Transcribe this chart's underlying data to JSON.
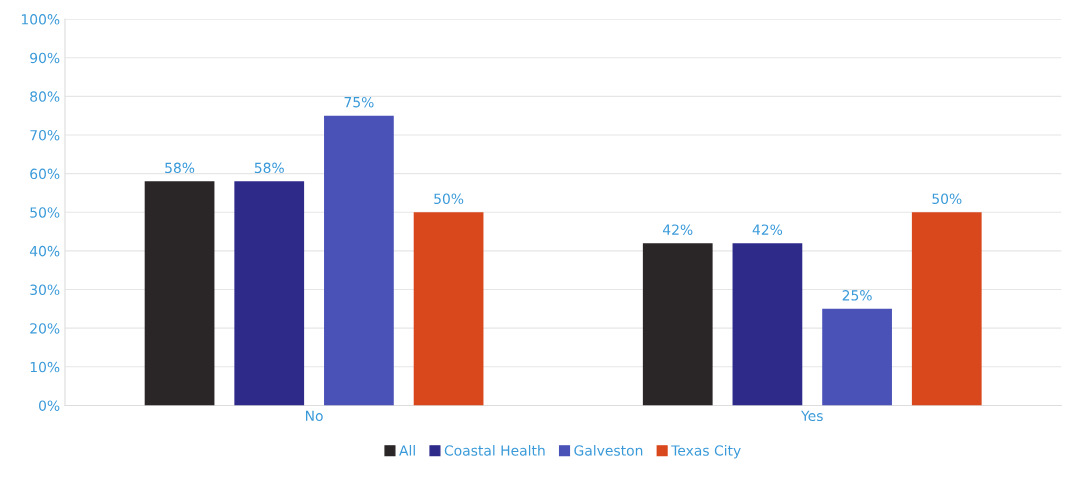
{
  "chart_data": {
    "type": "bar",
    "categories": [
      "No",
      "Yes"
    ],
    "series": [
      {
        "name": "All",
        "color": "#2a2526",
        "values": [
          58,
          42
        ],
        "value_labels": [
          "58%",
          "42%"
        ]
      },
      {
        "name": "Coastal Health",
        "color": "#2d2a8a",
        "values": [
          58,
          42
        ],
        "value_labels": [
          "58%",
          "42%"
        ]
      },
      {
        "name": "Galveston",
        "color": "#4a52b8",
        "values": [
          75,
          25
        ],
        "value_labels": [
          "75%",
          "25%"
        ]
      },
      {
        "name": "Texas City",
        "color": "#d9471c",
        "values": [
          50,
          50
        ],
        "value_labels": [
          "50%",
          "50%"
        ]
      }
    ],
    "ylim": [
      0,
      100
    ],
    "yticks": [
      {
        "value": 0,
        "label": "0%"
      },
      {
        "value": 10,
        "label": "10%"
      },
      {
        "value": 20,
        "label": "20%"
      },
      {
        "value": 30,
        "label": "30%"
      },
      {
        "value": 40,
        "label": "40%"
      },
      {
        "value": 50,
        "label": "50%"
      },
      {
        "value": 60,
        "label": "60%"
      },
      {
        "value": 70,
        "label": "70%"
      },
      {
        "value": 80,
        "label": "80%"
      },
      {
        "value": 90,
        "label": "90%"
      },
      {
        "value": 100,
        "label": "100%"
      }
    ],
    "grid": "y",
    "legend": "bottom"
  }
}
